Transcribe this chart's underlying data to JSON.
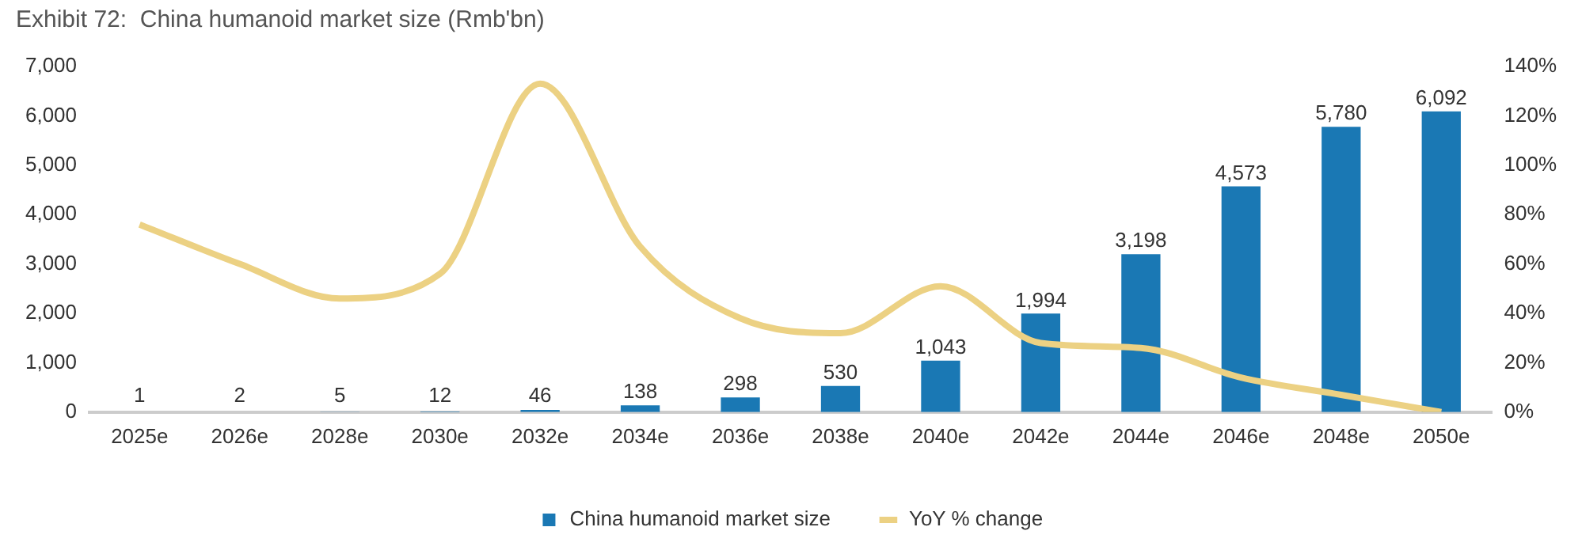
{
  "chart_data": {
    "type": "bar",
    "title": "Exhibit 72:  China humanoid market size (Rmb'bn)",
    "categories": [
      "2025e",
      "2026e",
      "2028e",
      "2030e",
      "2032e",
      "2034e",
      "2036e",
      "2038e",
      "2040e",
      "2042e",
      "2044e",
      "2046e",
      "2048e",
      "2050e"
    ],
    "series": [
      {
        "name": "China humanoid market size",
        "color": "#1a78b4",
        "values": [
          1,
          2,
          5,
          12,
          46,
          138,
          298,
          530,
          1043,
          1994,
          3198,
          4573,
          5780,
          6092
        ],
        "value_labels": [
          "1",
          "2",
          "5",
          "12",
          "46",
          "138",
          "298",
          "530",
          "1,043",
          "1,994",
          "3,198",
          "4,573",
          "5,780",
          "6,092"
        ]
      },
      {
        "name": "YoY % change",
        "type": "line",
        "axis": "y2",
        "color": "#ecd183",
        "values": [
          76,
          60,
          46,
          56,
          133,
          67,
          38,
          32,
          51,
          28,
          26,
          14,
          7,
          0
        ]
      }
    ],
    "ylim": [
      0,
      7000
    ],
    "yticks": [
      0,
      {
        "value": 1000,
        "label": "1,000"
      },
      {
        "value": 2000,
        "label": "2,000"
      },
      {
        "value": 3000,
        "label": "3,000"
      },
      {
        "value": 4000,
        "label": "4,000"
      },
      {
        "value": 5000,
        "label": "5,000"
      },
      {
        "value": 6000,
        "label": "6,000"
      },
      {
        "value": 7000,
        "label": "7,000"
      }
    ],
    "y2lim": [
      0,
      140
    ],
    "y2ticks": [
      {
        "value": 0,
        "label": "0%"
      },
      {
        "value": 20,
        "label": "20%"
      },
      {
        "value": 40,
        "label": "40%"
      },
      {
        "value": 60,
        "label": "60%"
      },
      {
        "value": 80,
        "label": "80%"
      },
      {
        "value": 100,
        "label": "100%"
      },
      {
        "value": 120,
        "label": "120%"
      },
      {
        "value": 140,
        "label": "140%"
      }
    ],
    "grid": false,
    "legend": "bottom"
  }
}
